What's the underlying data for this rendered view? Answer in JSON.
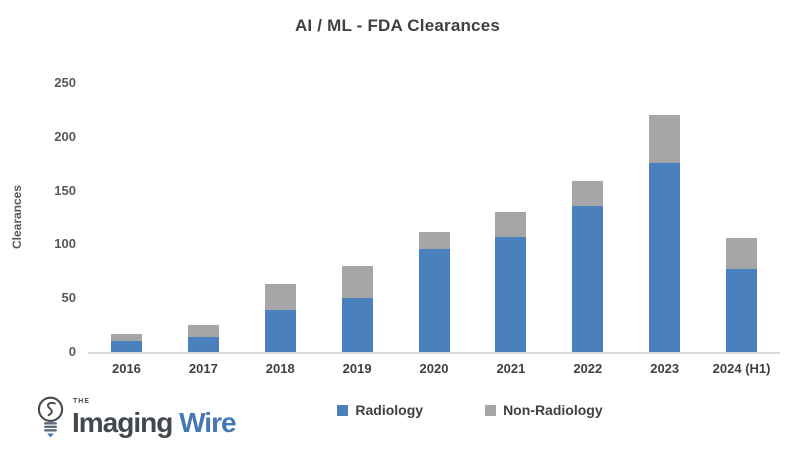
{
  "title": "AI / ML - FDA Clearances",
  "chart_data": {
    "type": "bar",
    "stacked": true,
    "title": "AI / ML - FDA Clearances",
    "xlabel": "",
    "ylabel": "Clearances",
    "ylim": [
      0,
      250
    ],
    "yticks": [
      0,
      50,
      100,
      150,
      200,
      250
    ],
    "grid": false,
    "legend_position": "bottom-center",
    "categories": [
      "2016",
      "2017",
      "2018",
      "2019",
      "2020",
      "2021",
      "2022",
      "2023",
      "2024 (H1)"
    ],
    "series": [
      {
        "name": "Radiology",
        "color": "#4b80bf",
        "values": [
          10,
          14,
          39,
          50,
          96,
          107,
          136,
          176,
          77
        ]
      },
      {
        "name": "Non-Radiology",
        "color": "#a6a6a6",
        "values": [
          7,
          11,
          24,
          30,
          16,
          23,
          23,
          44,
          29
        ]
      }
    ],
    "totals": [
      17,
      25,
      63,
      80,
      112,
      130,
      159,
      220,
      106
    ]
  },
  "axis": {
    "baseline_color": "#d9d9d9",
    "tick_color": "#595959",
    "category_label_color": "#404040"
  },
  "logo": {
    "the": "THE",
    "imaging": "Imaging",
    "wire": "Wire",
    "icon": "lightbulb-icon",
    "text_color": "#43484d",
    "wire_color": "#4577b5"
  }
}
